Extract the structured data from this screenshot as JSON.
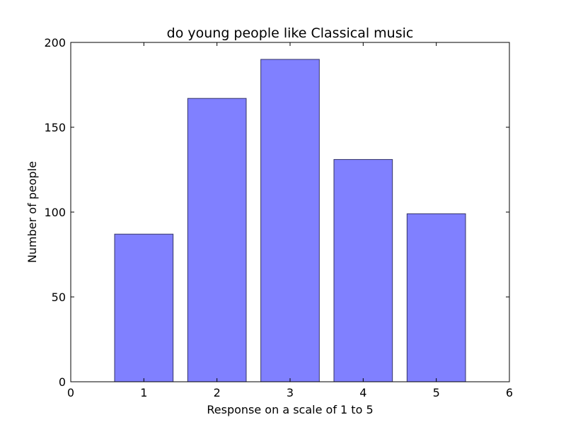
{
  "chart_data": {
    "type": "bar",
    "title": "do young people like Classical music",
    "xlabel": "Response on a scale of 1 to 5",
    "ylabel": "Number of people",
    "categories": [
      "1",
      "2",
      "3",
      "4",
      "5"
    ],
    "x": [
      1,
      2,
      3,
      4,
      5
    ],
    "values": [
      87,
      167,
      190,
      131,
      99
    ],
    "xlim": [
      0,
      6
    ],
    "ylim": [
      0,
      200
    ],
    "xticks": [
      0,
      1,
      2,
      3,
      4,
      5,
      6
    ],
    "yticks": [
      0,
      50,
      100,
      150,
      200
    ],
    "grid": false,
    "bar_width": 0.8,
    "colors": {
      "bar_fill": "#8080ff",
      "bar_edge": "#333366",
      "axes": "#000000"
    }
  }
}
